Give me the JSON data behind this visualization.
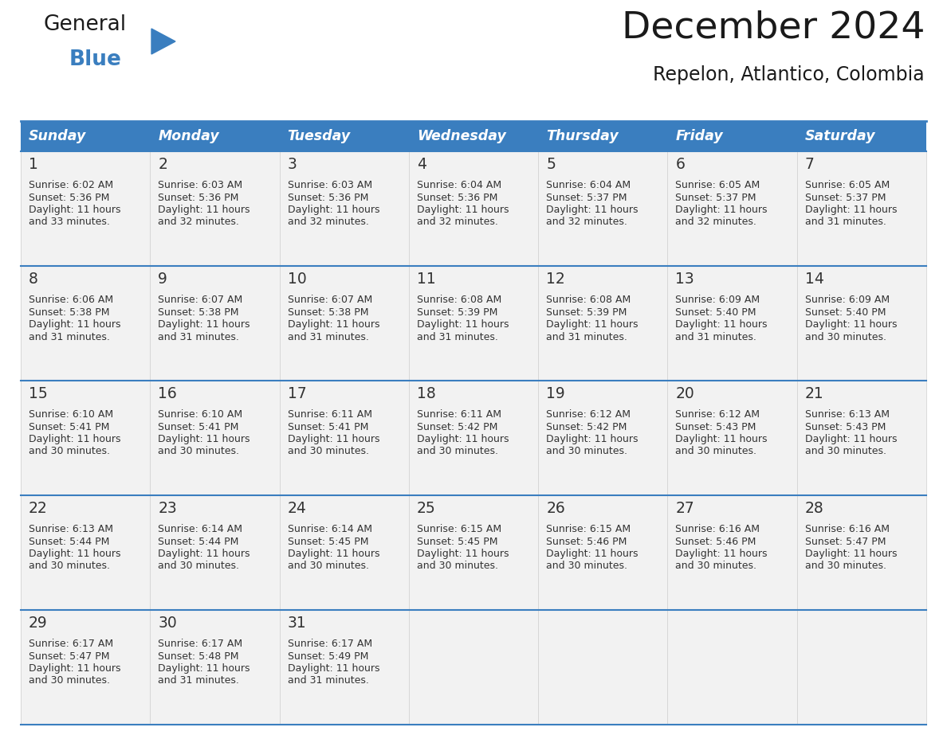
{
  "title": "December 2024",
  "subtitle": "Repelon, Atlantico, Colombia",
  "header_color": "#3a7ebf",
  "header_text_color": "#ffffff",
  "cell_bg_color": "#f2f2f2",
  "border_color": "#3a7ebf",
  "row_separator_color": "#3a7ebf",
  "col_separator_color": "#cccccc",
  "text_color": "#333333",
  "day_names": [
    "Sunday",
    "Monday",
    "Tuesday",
    "Wednesday",
    "Thursday",
    "Friday",
    "Saturday"
  ],
  "days": [
    {
      "day": 1,
      "col": 0,
      "row": 0,
      "sunrise": "6:02 AM",
      "sunset": "5:36 PM",
      "daylight_hours": 11,
      "daylight_minutes": 33
    },
    {
      "day": 2,
      "col": 1,
      "row": 0,
      "sunrise": "6:03 AM",
      "sunset": "5:36 PM",
      "daylight_hours": 11,
      "daylight_minutes": 32
    },
    {
      "day": 3,
      "col": 2,
      "row": 0,
      "sunrise": "6:03 AM",
      "sunset": "5:36 PM",
      "daylight_hours": 11,
      "daylight_minutes": 32
    },
    {
      "day": 4,
      "col": 3,
      "row": 0,
      "sunrise": "6:04 AM",
      "sunset": "5:36 PM",
      "daylight_hours": 11,
      "daylight_minutes": 32
    },
    {
      "day": 5,
      "col": 4,
      "row": 0,
      "sunrise": "6:04 AM",
      "sunset": "5:37 PM",
      "daylight_hours": 11,
      "daylight_minutes": 32
    },
    {
      "day": 6,
      "col": 5,
      "row": 0,
      "sunrise": "6:05 AM",
      "sunset": "5:37 PM",
      "daylight_hours": 11,
      "daylight_minutes": 32
    },
    {
      "day": 7,
      "col": 6,
      "row": 0,
      "sunrise": "6:05 AM",
      "sunset": "5:37 PM",
      "daylight_hours": 11,
      "daylight_minutes": 31
    },
    {
      "day": 8,
      "col": 0,
      "row": 1,
      "sunrise": "6:06 AM",
      "sunset": "5:38 PM",
      "daylight_hours": 11,
      "daylight_minutes": 31
    },
    {
      "day": 9,
      "col": 1,
      "row": 1,
      "sunrise": "6:07 AM",
      "sunset": "5:38 PM",
      "daylight_hours": 11,
      "daylight_minutes": 31
    },
    {
      "day": 10,
      "col": 2,
      "row": 1,
      "sunrise": "6:07 AM",
      "sunset": "5:38 PM",
      "daylight_hours": 11,
      "daylight_minutes": 31
    },
    {
      "day": 11,
      "col": 3,
      "row": 1,
      "sunrise": "6:08 AM",
      "sunset": "5:39 PM",
      "daylight_hours": 11,
      "daylight_minutes": 31
    },
    {
      "day": 12,
      "col": 4,
      "row": 1,
      "sunrise": "6:08 AM",
      "sunset": "5:39 PM",
      "daylight_hours": 11,
      "daylight_minutes": 31
    },
    {
      "day": 13,
      "col": 5,
      "row": 1,
      "sunrise": "6:09 AM",
      "sunset": "5:40 PM",
      "daylight_hours": 11,
      "daylight_minutes": 31
    },
    {
      "day": 14,
      "col": 6,
      "row": 1,
      "sunrise": "6:09 AM",
      "sunset": "5:40 PM",
      "daylight_hours": 11,
      "daylight_minutes": 30
    },
    {
      "day": 15,
      "col": 0,
      "row": 2,
      "sunrise": "6:10 AM",
      "sunset": "5:41 PM",
      "daylight_hours": 11,
      "daylight_minutes": 30
    },
    {
      "day": 16,
      "col": 1,
      "row": 2,
      "sunrise": "6:10 AM",
      "sunset": "5:41 PM",
      "daylight_hours": 11,
      "daylight_minutes": 30
    },
    {
      "day": 17,
      "col": 2,
      "row": 2,
      "sunrise": "6:11 AM",
      "sunset": "5:41 PM",
      "daylight_hours": 11,
      "daylight_minutes": 30
    },
    {
      "day": 18,
      "col": 3,
      "row": 2,
      "sunrise": "6:11 AM",
      "sunset": "5:42 PM",
      "daylight_hours": 11,
      "daylight_minutes": 30
    },
    {
      "day": 19,
      "col": 4,
      "row": 2,
      "sunrise": "6:12 AM",
      "sunset": "5:42 PM",
      "daylight_hours": 11,
      "daylight_minutes": 30
    },
    {
      "day": 20,
      "col": 5,
      "row": 2,
      "sunrise": "6:12 AM",
      "sunset": "5:43 PM",
      "daylight_hours": 11,
      "daylight_minutes": 30
    },
    {
      "day": 21,
      "col": 6,
      "row": 2,
      "sunrise": "6:13 AM",
      "sunset": "5:43 PM",
      "daylight_hours": 11,
      "daylight_minutes": 30
    },
    {
      "day": 22,
      "col": 0,
      "row": 3,
      "sunrise": "6:13 AM",
      "sunset": "5:44 PM",
      "daylight_hours": 11,
      "daylight_minutes": 30
    },
    {
      "day": 23,
      "col": 1,
      "row": 3,
      "sunrise": "6:14 AM",
      "sunset": "5:44 PM",
      "daylight_hours": 11,
      "daylight_minutes": 30
    },
    {
      "day": 24,
      "col": 2,
      "row": 3,
      "sunrise": "6:14 AM",
      "sunset": "5:45 PM",
      "daylight_hours": 11,
      "daylight_minutes": 30
    },
    {
      "day": 25,
      "col": 3,
      "row": 3,
      "sunrise": "6:15 AM",
      "sunset": "5:45 PM",
      "daylight_hours": 11,
      "daylight_minutes": 30
    },
    {
      "day": 26,
      "col": 4,
      "row": 3,
      "sunrise": "6:15 AM",
      "sunset": "5:46 PM",
      "daylight_hours": 11,
      "daylight_minutes": 30
    },
    {
      "day": 27,
      "col": 5,
      "row": 3,
      "sunrise": "6:16 AM",
      "sunset": "5:46 PM",
      "daylight_hours": 11,
      "daylight_minutes": 30
    },
    {
      "day": 28,
      "col": 6,
      "row": 3,
      "sunrise": "6:16 AM",
      "sunset": "5:47 PM",
      "daylight_hours": 11,
      "daylight_minutes": 30
    },
    {
      "day": 29,
      "col": 0,
      "row": 4,
      "sunrise": "6:17 AM",
      "sunset": "5:47 PM",
      "daylight_hours": 11,
      "daylight_minutes": 30
    },
    {
      "day": 30,
      "col": 1,
      "row": 4,
      "sunrise": "6:17 AM",
      "sunset": "5:48 PM",
      "daylight_hours": 11,
      "daylight_minutes": 31
    },
    {
      "day": 31,
      "col": 2,
      "row": 4,
      "sunrise": "6:17 AM",
      "sunset": "5:49 PM",
      "daylight_hours": 11,
      "daylight_minutes": 31
    }
  ]
}
